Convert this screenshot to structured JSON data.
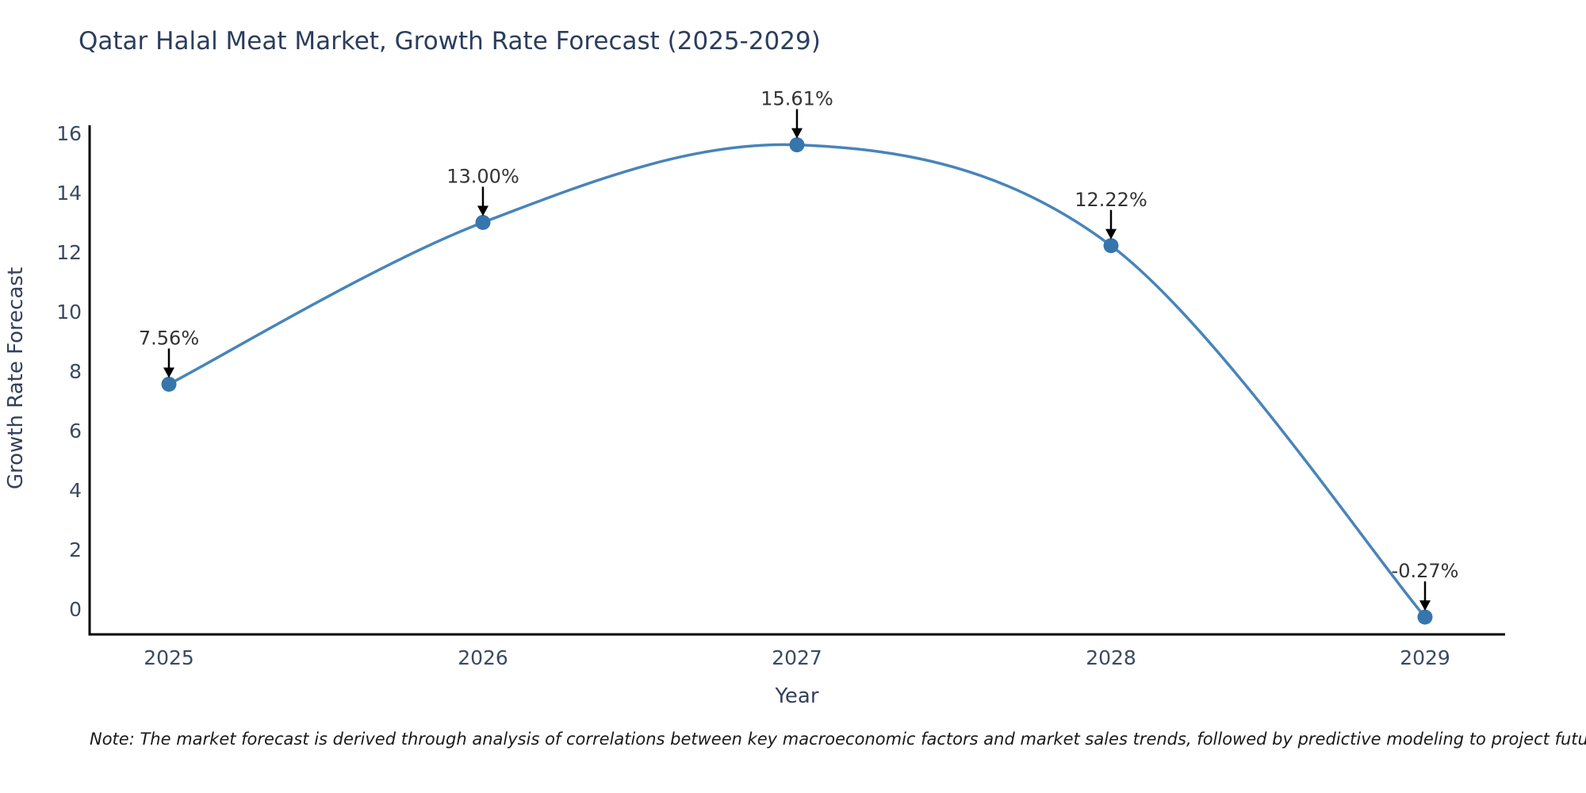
{
  "chart_data": {
    "type": "line",
    "title": "Qatar Halal Meat Market, Growth Rate Forecast (2025-2029)",
    "xlabel": "Year",
    "ylabel": "Growth Rate Forecast",
    "x": [
      2025,
      2026,
      2027,
      2028,
      2029
    ],
    "values": [
      7.56,
      13.0,
      15.61,
      12.22,
      -0.27
    ],
    "point_labels": [
      "7.56%",
      "13.00%",
      "15.61%",
      "12.22%",
      "-0.27%"
    ],
    "yticks": [
      0,
      2,
      4,
      6,
      8,
      10,
      12,
      14,
      16
    ],
    "ylim": [
      -0.85,
      16.25
    ],
    "grid": false,
    "legend": "none",
    "colors": {
      "line": "#4884ba",
      "marker": "#3775ad",
      "axis": "#000000",
      "title": "#2c3e5d",
      "tick": "#3b4a63",
      "axis_label": "#33415c",
      "annotation": "#333333",
      "arrow": "#000000"
    }
  },
  "note": {
    "text": "Note: The market forecast is derived through analysis of correlations between key macroeconomic factors and market sales trends, followed by predictive modeling to project future sales"
  }
}
